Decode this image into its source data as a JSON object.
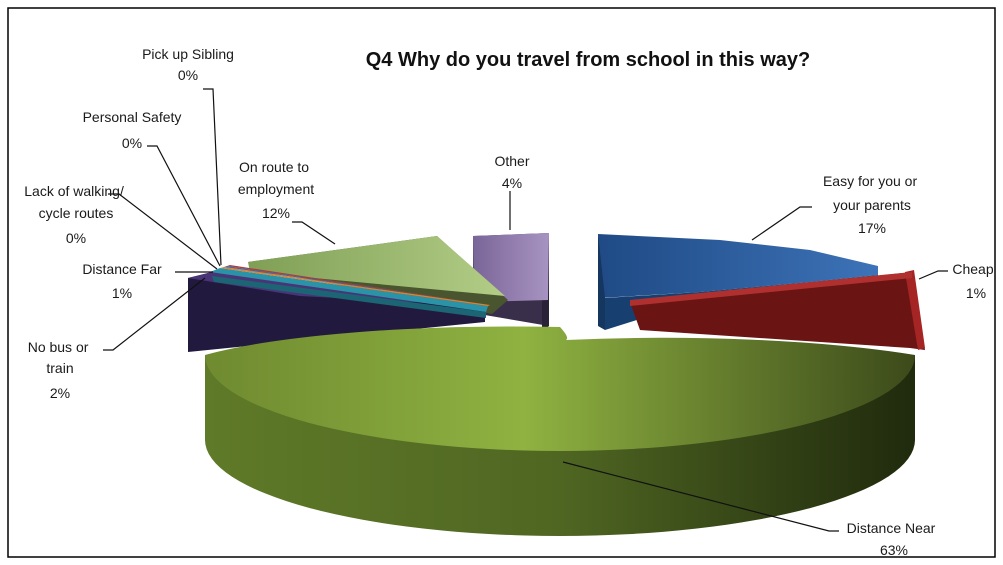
{
  "chart_data": {
    "type": "pie",
    "title": "Q4 Why do you travel from school in this way?",
    "unit": "%",
    "legend": "none",
    "slices": [
      {
        "label": "Easy for you or your parents",
        "value": 17,
        "display": "17%",
        "color": "#2a5a9a"
      },
      {
        "label": "Cheap",
        "value": 1,
        "display": "1%",
        "color": "#8e1e1e"
      },
      {
        "label": "Distance Near",
        "value": 63,
        "display": "63%",
        "color": "#7a9a36"
      },
      {
        "label": "No bus or train",
        "value": 2,
        "display": "2%",
        "color": "#4a3478"
      },
      {
        "label": "Distance Far",
        "value": 1,
        "display": "1%",
        "color": "#2b93a8"
      },
      {
        "label": "Lack of walking/ cycle routes",
        "value": 0,
        "display": "0%",
        "color": "#e0822d"
      },
      {
        "label": "Personal Safety",
        "value": 0,
        "display": "0%",
        "color": "#3f6aa8"
      },
      {
        "label": "Pick up Sibling",
        "value": 0,
        "display": "0%",
        "color": "#b03a3a"
      },
      {
        "label": "On route to employment",
        "value": 12,
        "display": "12%",
        "color": "#9ab86a"
      },
      {
        "label": "Other",
        "value": 4,
        "display": "4%",
        "color": "#8a76a6"
      }
    ]
  }
}
